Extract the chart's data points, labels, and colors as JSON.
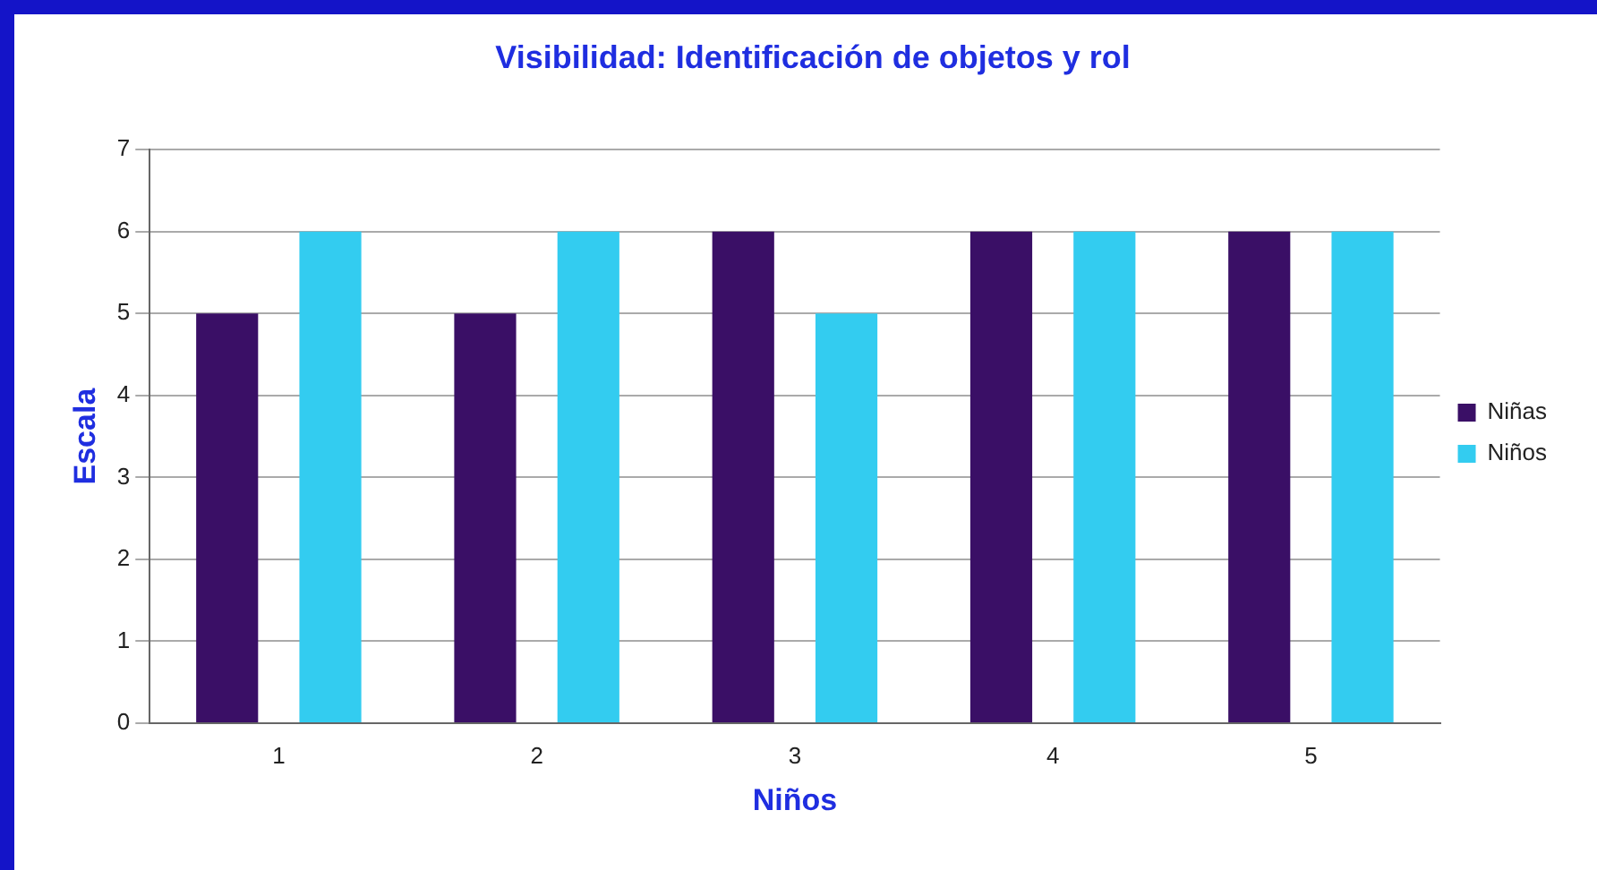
{
  "chart_data": {
    "type": "bar",
    "title": "Visibilidad: Identificación de objetos y rol",
    "xlabel": "Niños",
    "ylabel": "Escala",
    "categories": [
      "1",
      "2",
      "3",
      "4",
      "5"
    ],
    "series": [
      {
        "name": "Niñas",
        "color": "#3a0f66",
        "values": [
          5,
          5,
          6,
          6,
          6
        ]
      },
      {
        "name": "Niños",
        "color": "#33ccf0",
        "values": [
          6,
          6,
          5,
          6,
          6
        ]
      }
    ],
    "ylim": [
      0,
      7
    ],
    "yticks": [
      0,
      1,
      2,
      3,
      4,
      5,
      6,
      7
    ],
    "grid": "y",
    "legend": "right"
  }
}
